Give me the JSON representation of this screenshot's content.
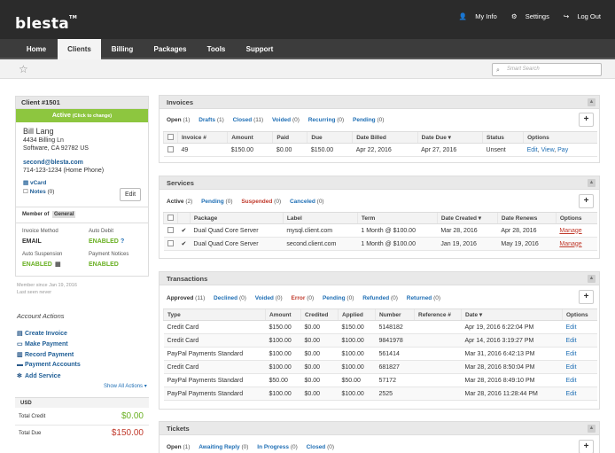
{
  "app": {
    "logo": "blesta",
    "logo_tm": "TM"
  },
  "toplinks": {
    "my_info": "My Info",
    "settings": "Settings",
    "logout": "Log Out"
  },
  "nav": {
    "tabs": [
      "Home",
      "Clients",
      "Billing",
      "Packages",
      "Tools",
      "Support"
    ],
    "active": "Clients"
  },
  "search": {
    "placeholder": "Smart Search"
  },
  "client": {
    "header": "Client #1501",
    "status": "Active",
    "status_hint": "(Click to change)",
    "name": "Bill Lang",
    "address1": "4434 Billing Ln",
    "address2": "Software, CA 92782 US",
    "email": "second@blesta.com",
    "phone": "714-123-1234 (Home Phone)",
    "vcard": "vCard",
    "notes_label": "Notes",
    "notes_count": "(0)",
    "edit": "Edit",
    "member_of_label": "Member of",
    "member_group": "General",
    "invoice_method_label": "Invoice Method",
    "invoice_method": "EMAIL",
    "auto_debit_label": "Auto Debit",
    "auto_debit": "ENABLED",
    "auto_debit_help": "?",
    "auto_suspension_label": "Auto Suspension",
    "auto_suspension": "ENABLED",
    "payment_notices_label": "Payment Notices",
    "payment_notices": "ENABLED"
  },
  "member_since": "Member since Jan 19, 2016",
  "last_seen": "Last seen never",
  "account_actions": {
    "title": "Account Actions",
    "items": [
      "Create Invoice",
      "Make Payment",
      "Record Payment",
      "Payment Accounts",
      "Add Service"
    ],
    "show_all": "Show All Actions ▾"
  },
  "money": {
    "currency": "USD",
    "total_credit_label": "Total Credit",
    "total_credit": "$0.00",
    "total_due_label": "Total Due",
    "total_due": "$150.00"
  },
  "invoices": {
    "title": "Invoices",
    "filters": [
      {
        "label": "Open",
        "count": "(1)"
      },
      {
        "label": "Drafts",
        "count": "(1)"
      },
      {
        "label": "Closed",
        "count": "(11)"
      },
      {
        "label": "Voided",
        "count": "(0)"
      },
      {
        "label": "Recurring",
        "count": "(0)"
      },
      {
        "label": "Pending",
        "count": "(0)"
      }
    ],
    "columns": [
      "Invoice #",
      "Amount",
      "Paid",
      "Due",
      "Date Billed",
      "Date Due ▾",
      "Status",
      "Options"
    ],
    "rows": [
      {
        "number": "49",
        "amount": "$150.00",
        "paid": "$0.00",
        "due": "$150.00",
        "billed": "Apr 22, 2016",
        "date_due": "Apr 27, 2016",
        "status": "Unsent",
        "opt1": "Edit",
        "opt2": "View",
        "opt3": "Pay"
      }
    ]
  },
  "services": {
    "title": "Services",
    "filters": [
      {
        "label": "Active",
        "count": "(2)"
      },
      {
        "label": "Pending",
        "count": "(0)"
      },
      {
        "label": "Suspended",
        "count": "(0)"
      },
      {
        "label": "Canceled",
        "count": "(0)"
      }
    ],
    "columns": [
      "Package",
      "Label",
      "Term",
      "Date Created ▾",
      "Date Renews",
      "Options"
    ],
    "rows": [
      {
        "package": "Dual Quad Core Server",
        "label": "mysql.client.com",
        "term": "1 Month @ $100.00",
        "created": "Mar 28, 2016",
        "renews": "Apr 28, 2016",
        "option": "Manage"
      },
      {
        "package": "Dual Quad Core Server",
        "label": "second.client.com",
        "term": "1 Month @ $100.00",
        "created": "Jan 19, 2016",
        "renews": "May 19, 2016",
        "option": "Manage"
      }
    ]
  },
  "transactions": {
    "title": "Transactions",
    "filters": [
      {
        "label": "Approved",
        "count": "(11)"
      },
      {
        "label": "Declined",
        "count": "(0)"
      },
      {
        "label": "Voided",
        "count": "(0)"
      },
      {
        "label": "Error",
        "count": "(0)"
      },
      {
        "label": "Pending",
        "count": "(0)"
      },
      {
        "label": "Refunded",
        "count": "(0)"
      },
      {
        "label": "Returned",
        "count": "(0)"
      }
    ],
    "columns": [
      "Type",
      "Amount",
      "Credited",
      "Applied",
      "Number",
      "Reference #",
      "Date ▾",
      "Options"
    ],
    "rows": [
      {
        "type": "Credit Card",
        "amount": "$150.00",
        "credited": "$0.00",
        "applied": "$150.00",
        "number": "5148182",
        "ref": "",
        "date": "Apr 19, 2016 6:22:04 PM",
        "option": "Edit"
      },
      {
        "type": "Credit Card",
        "amount": "$100.00",
        "credited": "$0.00",
        "applied": "$100.00",
        "number": "9841978",
        "ref": "",
        "date": "Apr 14, 2016 3:19:27 PM",
        "option": "Edit"
      },
      {
        "type": "PayPal Payments Standard",
        "amount": "$100.00",
        "credited": "$0.00",
        "applied": "$100.00",
        "number": "561414",
        "ref": "",
        "date": "Mar 31, 2016 6:42:13 PM",
        "option": "Edit"
      },
      {
        "type": "Credit Card",
        "amount": "$100.00",
        "credited": "$0.00",
        "applied": "$100.00",
        "number": "681827",
        "ref": "",
        "date": "Mar 28, 2016 8:50:04 PM",
        "option": "Edit"
      },
      {
        "type": "PayPal Payments Standard",
        "amount": "$50.00",
        "credited": "$0.00",
        "applied": "$50.00",
        "number": "57172",
        "ref": "",
        "date": "Mar 28, 2016 8:49:10 PM",
        "option": "Edit"
      },
      {
        "type": "PayPal Payments Standard",
        "amount": "$100.00",
        "credited": "$0.00",
        "applied": "$100.00",
        "number": "2525",
        "ref": "",
        "date": "Mar 28, 2016 11:28:44 PM",
        "option": "Edit"
      }
    ]
  },
  "tickets": {
    "title": "Tickets",
    "filters": [
      {
        "label": "Open",
        "count": "(1)"
      },
      {
        "label": "Awaiting Reply",
        "count": "(0)"
      },
      {
        "label": "In Progress",
        "count": "(0)"
      },
      {
        "label": "Closed",
        "count": "(0)"
      }
    ]
  }
}
